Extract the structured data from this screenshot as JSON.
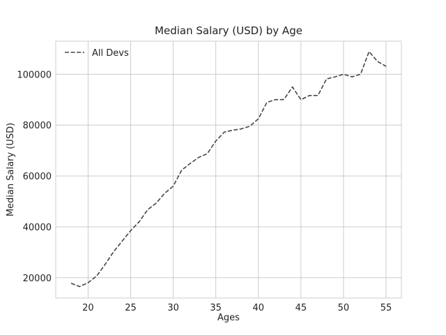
{
  "chart_data": {
    "type": "line",
    "title": "Median Salary (USD) by Age",
    "xlabel": "Ages",
    "ylabel": "Median Salary (USD)",
    "xlim": [
      16.2,
      56.8
    ],
    "ylim": [
      12000,
      113000
    ],
    "xticks": [
      20,
      25,
      30,
      35,
      40,
      45,
      50,
      55
    ],
    "yticks": [
      20000,
      40000,
      60000,
      80000,
      100000
    ],
    "grid": true,
    "legend_position": "top-left",
    "series": [
      {
        "name": "All Devs",
        "color": "#444444",
        "linestyle": "dashed",
        "x": [
          18,
          19,
          20,
          21,
          22,
          23,
          24,
          25,
          26,
          27,
          28,
          29,
          30,
          31,
          32,
          33,
          34,
          35,
          36,
          37,
          38,
          39,
          40,
          41,
          42,
          43,
          44,
          45,
          46,
          47,
          48,
          49,
          50,
          51,
          52,
          53,
          54,
          55
        ],
        "y": [
          17784,
          16500,
          18012,
          20628,
          25206,
          30252,
          34368,
          38496,
          42000,
          46752,
          49320,
          53200,
          56000,
          62316,
          64928,
          67317,
          68748,
          73752,
          77232,
          78000,
          78508,
          79536,
          82488,
          88935,
          90000,
          90056,
          95000,
          90000,
          91633,
          91660,
          98150,
          98964,
          100000,
          98988,
          100000,
          108923,
          105000,
          103117
        ]
      }
    ]
  }
}
